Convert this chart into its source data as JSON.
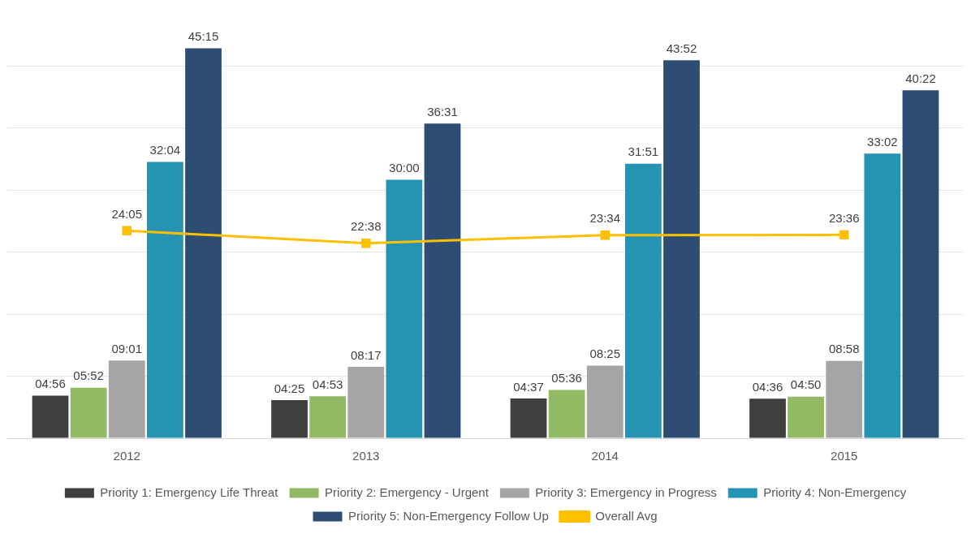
{
  "chart_data": {
    "type": "bar",
    "categories": [
      "2012",
      "2013",
      "2014",
      "2015"
    ],
    "series": [
      {
        "name": "Priority 1: Emergency Life Threat",
        "color": "#404040",
        "values": [
          296,
          265,
          277,
          276
        ],
        "value_labels": [
          "04:56",
          "04:25",
          "04:37",
          "04:36"
        ]
      },
      {
        "name": "Priority 2: Emergency - Urgent",
        "color": "#92b963",
        "values": [
          352,
          293,
          336,
          290
        ],
        "value_labels": [
          "05:52",
          "04:53",
          "05:36",
          "04:50"
        ]
      },
      {
        "name": "Priority 3: Emergency in Progress",
        "color": "#a5a5a5",
        "values": [
          541,
          497,
          505,
          538
        ],
        "value_labels": [
          "09:01",
          "08:17",
          "08:25",
          "08:58"
        ]
      },
      {
        "name": "Priority 4: Non-Emergency",
        "color": "#2793b3",
        "values": [
          1924,
          1800,
          1911,
          1982
        ],
        "value_labels": [
          "32:04",
          "30:00",
          "31:51",
          "33:02"
        ]
      },
      {
        "name": "Priority 5: Non-Emergency Follow Up",
        "color": "#2d4e72",
        "values": [
          2715,
          2191,
          2632,
          2422
        ],
        "value_labels": [
          "45:15",
          "36:31",
          "43:52",
          "40:22"
        ]
      },
      {
        "name": "Overall Avg",
        "type": "line",
        "color": "#ffc000",
        "values": [
          1445,
          1358,
          1414,
          1416
        ],
        "value_labels": [
          "24:05",
          "22:38",
          "23:34",
          "23:36"
        ]
      }
    ],
    "yticks": [
      {
        "value": 0,
        "label": null
      },
      {
        "value": 432,
        "label": null
      },
      {
        "value": 864,
        "label": null
      },
      {
        "value": 1296,
        "label": null
      },
      {
        "value": 1728,
        "label": null
      },
      {
        "value": 2160,
        "label": null
      },
      {
        "value": 2592,
        "label": null
      }
    ],
    "grid": "y",
    "tick_labels": "x",
    "legend": "bottom",
    "marker": "square",
    "line_style": "solid"
  }
}
